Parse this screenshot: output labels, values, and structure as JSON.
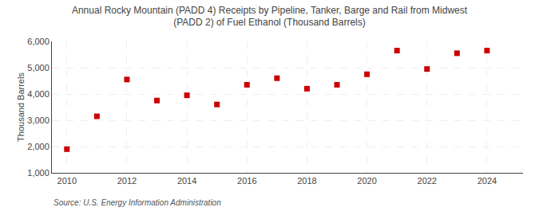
{
  "chart_data": {
    "type": "scatter",
    "title": "Annual Rocky Mountain (PADD 4) Receipts by Pipeline, Tanker, Barge and Rail from Midwest\n(PADD 2) of Fuel Ethanol (Thousand Barrels)",
    "ylabel": "Thousand Barrels",
    "annotations": [
      "Source: U.S. Energy Information Administration"
    ],
    "x": [
      2010,
      2011,
      2012,
      2013,
      2014,
      2015,
      2016,
      2017,
      2018,
      2019,
      2020,
      2021,
      2022,
      2023,
      2024
    ],
    "values": [
      1900,
      3150,
      4550,
      3750,
      3950,
      3600,
      4350,
      4600,
      4200,
      4350,
      4750,
      5650,
      4950,
      5550,
      5650
    ],
    "color": "#CC0000",
    "marker": "square",
    "xlim": [
      2009.5,
      2025.2
    ],
    "xticks": [
      2010,
      2012,
      2014,
      2016,
      2018,
      2020,
      2022,
      2024
    ],
    "ylim": [
      1000,
      6000
    ],
    "yticks": [
      {
        "value": 1000,
        "label": "1,000"
      },
      {
        "value": 2000,
        "label": "2,000"
      },
      {
        "value": 3000,
        "label": "3,000"
      },
      {
        "value": 4000,
        "label": "4,000"
      },
      {
        "value": 5000,
        "label": "5,000"
      },
      {
        "value": 6000,
        "label": "6,000"
      }
    ],
    "grid": true
  }
}
